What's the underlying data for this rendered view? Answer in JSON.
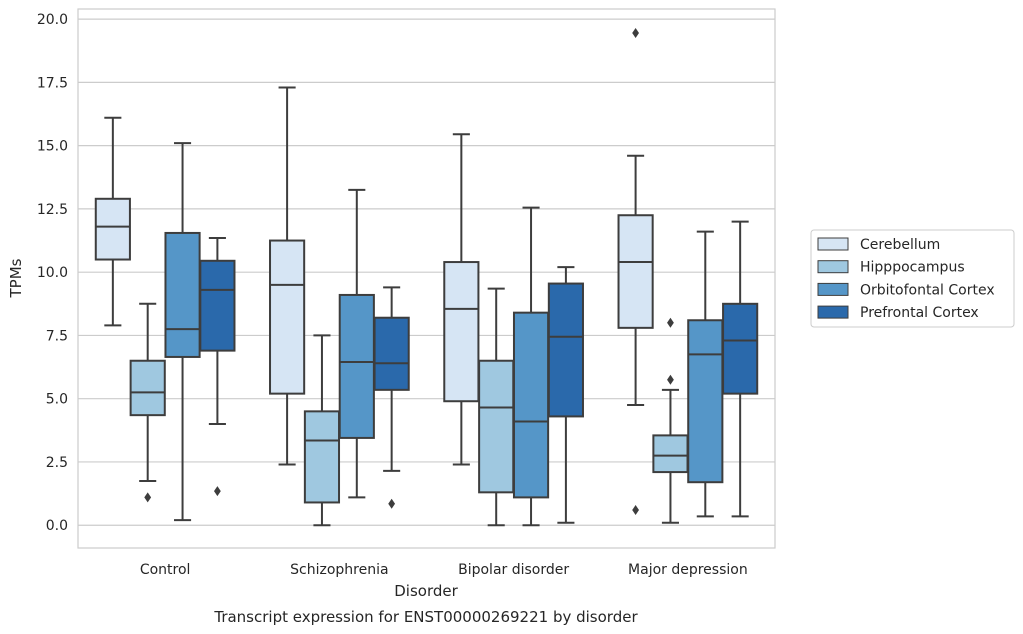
{
  "chart_data": {
    "type": "box",
    "title": "Transcript expression for ENST00000269221 by disorder",
    "xlabel": "Disorder",
    "ylabel": "TPMs",
    "ylim": [
      -0.9,
      20.4
    ],
    "yticks": [
      0.0,
      2.5,
      5.0,
      7.5,
      10.0,
      12.5,
      15.0,
      17.5,
      20.0
    ],
    "ytick_labels": [
      "0.0",
      "2.5",
      "5.0",
      "7.5",
      "10.0",
      "12.5",
      "15.0",
      "17.5",
      "20.0"
    ],
    "grid": true,
    "legend_position": "right",
    "categories": [
      "Control",
      "Schizophrenia",
      "Bipolar disorder",
      "Major depression"
    ],
    "series": [
      {
        "name": "Cerebellum",
        "color": "#d6e5f4",
        "boxes": [
          {
            "whislo": 7.9,
            "q1": 10.5,
            "med": 11.8,
            "q3": 12.9,
            "whishi": 16.1,
            "fliers": []
          },
          {
            "whislo": 2.4,
            "q1": 5.2,
            "med": 9.5,
            "q3": 11.25,
            "whishi": 17.3,
            "fliers": []
          },
          {
            "whislo": 2.4,
            "q1": 4.9,
            "med": 8.55,
            "q3": 10.4,
            "whishi": 15.45,
            "fliers": []
          },
          {
            "whislo": 4.75,
            "q1": 7.8,
            "med": 10.4,
            "q3": 12.25,
            "whishi": 14.6,
            "fliers": [
              0.6,
              19.45
            ]
          }
        ]
      },
      {
        "name": "Hipppocampus",
        "color": "#9fc8e0",
        "boxes": [
          {
            "whislo": 1.75,
            "q1": 4.35,
            "med": 5.25,
            "q3": 6.5,
            "whishi": 8.75,
            "fliers": [
              1.1
            ]
          },
          {
            "whislo": 0.0,
            "q1": 0.9,
            "med": 3.35,
            "q3": 4.5,
            "whishi": 7.5,
            "fliers": []
          },
          {
            "whislo": 0.0,
            "q1": 1.3,
            "med": 4.65,
            "q3": 6.5,
            "whishi": 9.35,
            "fliers": []
          },
          {
            "whislo": 0.1,
            "q1": 2.1,
            "med": 2.75,
            "q3": 3.55,
            "whishi": 5.35,
            "fliers": [
              5.75,
              8.0
            ]
          }
        ]
      },
      {
        "name": "Orbitofontal Cortex",
        "color": "#5596c8",
        "boxes": [
          {
            "whislo": 0.2,
            "q1": 6.65,
            "med": 7.75,
            "q3": 11.55,
            "whishi": 15.1,
            "fliers": []
          },
          {
            "whislo": 1.1,
            "q1": 3.45,
            "med": 6.45,
            "q3": 9.1,
            "whishi": 13.25,
            "fliers": []
          },
          {
            "whislo": 0.0,
            "q1": 1.1,
            "med": 4.1,
            "q3": 8.4,
            "whishi": 12.55,
            "fliers": []
          },
          {
            "whislo": 0.35,
            "q1": 1.7,
            "med": 6.75,
            "q3": 8.1,
            "whishi": 11.6,
            "fliers": []
          }
        ]
      },
      {
        "name": "Prefrontal Cortex",
        "color": "#2a69ab",
        "boxes": [
          {
            "whislo": 4.0,
            "q1": 6.9,
            "med": 9.3,
            "q3": 10.45,
            "whishi": 11.35,
            "fliers": [
              1.35
            ]
          },
          {
            "whislo": 2.15,
            "q1": 5.35,
            "med": 6.4,
            "q3": 8.2,
            "whishi": 9.4,
            "fliers": [
              0.85
            ]
          },
          {
            "whislo": 0.1,
            "q1": 4.3,
            "med": 7.45,
            "q3": 9.55,
            "whishi": 10.2,
            "fliers": []
          },
          {
            "whislo": 0.35,
            "q1": 5.2,
            "med": 7.3,
            "q3": 8.75,
            "whishi": 12.0,
            "fliers": []
          }
        ]
      }
    ]
  }
}
